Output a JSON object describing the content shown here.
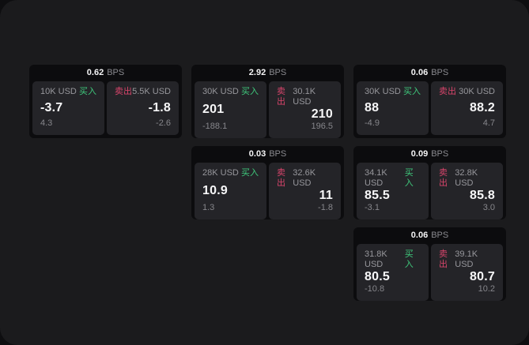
{
  "app": {
    "unit_label": "BPS",
    "buy_label": "买入",
    "sell_label": "卖出",
    "colors": {
      "buy_green": "#3fc97c",
      "sell_red": "#d8456b",
      "page_bg": "#1b1b1d",
      "card_bg": "#0c0c0e",
      "panel_bg": "#242428",
      "value_text": "#f7f7f8",
      "muted_text": "#8a8a8f"
    }
  },
  "cards": [
    {
      "bps": "0.62",
      "buy": {
        "amount": "10K USD",
        "value": "-3.7",
        "sub": "4.3"
      },
      "sell": {
        "amount": "5.5K USD",
        "value": "-1.8",
        "sub": "-2.6"
      }
    },
    {
      "bps": "2.92",
      "buy": {
        "amount": "30K USD",
        "value": "201",
        "sub": "-188.1"
      },
      "sell": {
        "amount": "30.1K USD",
        "value": "210",
        "sub": "196.5"
      }
    },
    {
      "bps": "0.06",
      "buy": {
        "amount": "30K USD",
        "value": "88",
        "sub": "-4.9"
      },
      "sell": {
        "amount": "30K USD",
        "value": "88.2",
        "sub": "4.7"
      }
    },
    {
      "bps": "0.03",
      "buy": {
        "amount": "28K USD",
        "value": "10.9",
        "sub": "1.3"
      },
      "sell": {
        "amount": "32.6K USD",
        "value": "11",
        "sub": "-1.8"
      }
    },
    {
      "bps": "0.09",
      "buy": {
        "amount": "34.1K USD",
        "value": "85.5",
        "sub": "-3.1"
      },
      "sell": {
        "amount": "32.8K USD",
        "value": "85.8",
        "sub": "3.0"
      }
    },
    {
      "bps": "0.06",
      "buy": {
        "amount": "31.8K USD",
        "value": "80.5",
        "sub": "-10.8"
      },
      "sell": {
        "amount": "39.1K USD",
        "value": "80.7",
        "sub": "10.2"
      }
    }
  ]
}
